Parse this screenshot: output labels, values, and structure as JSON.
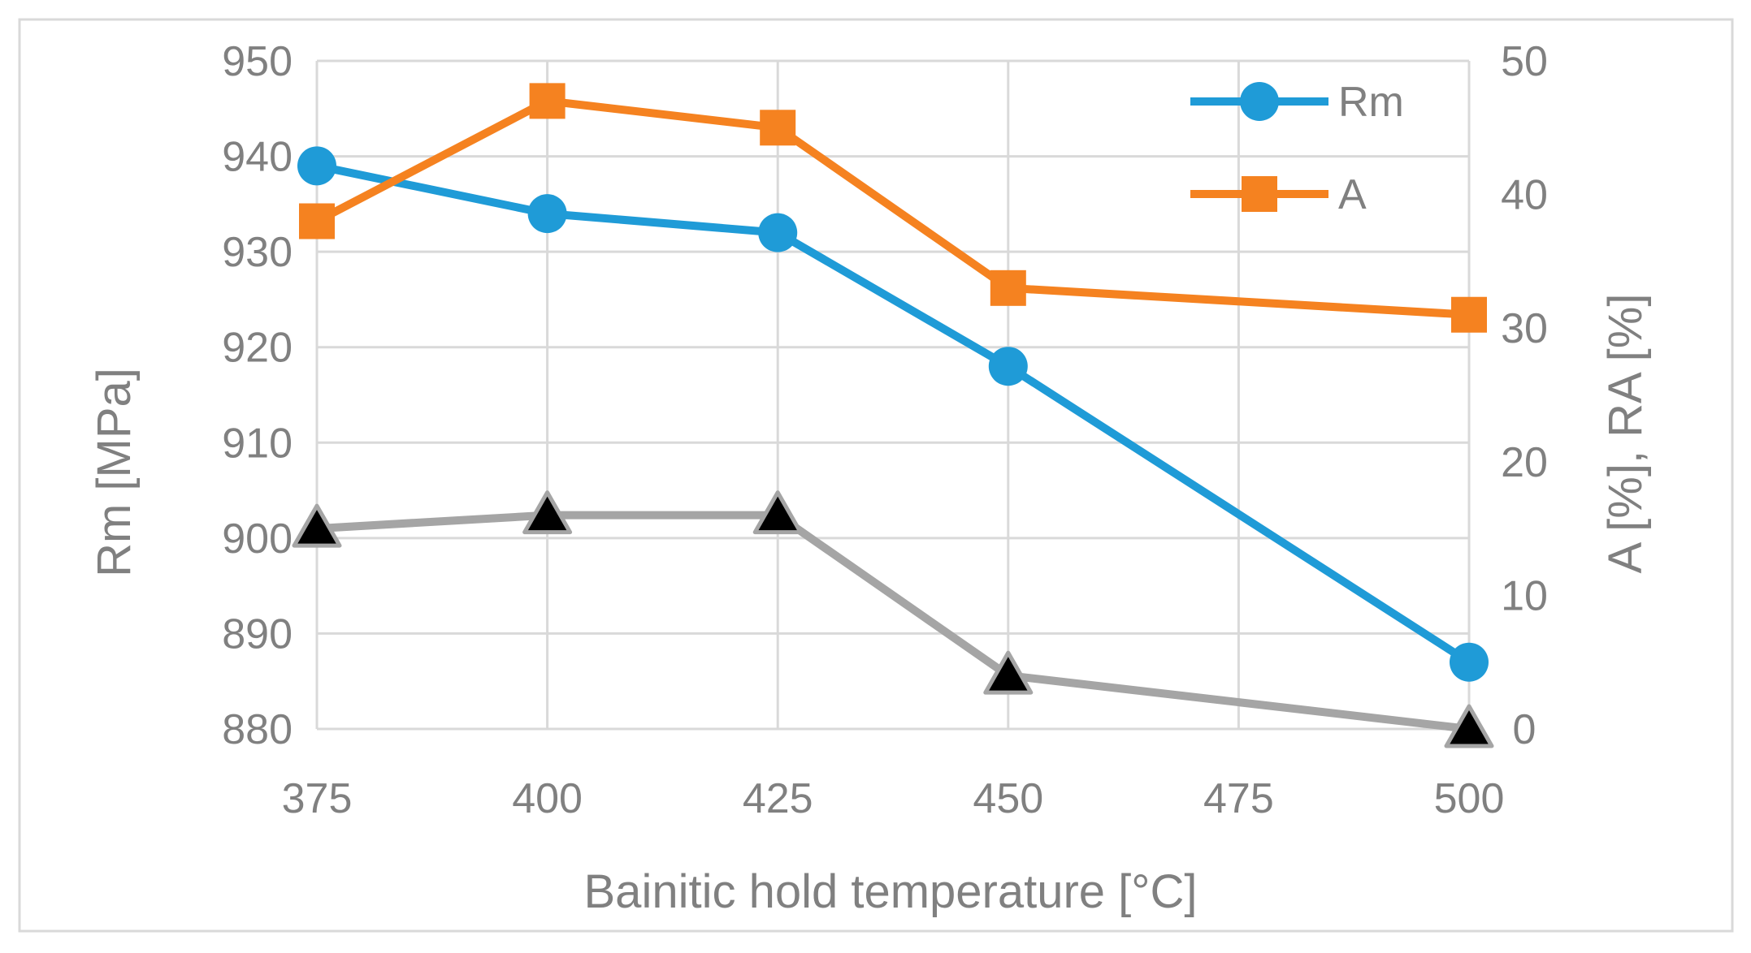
{
  "chart_data": {
    "type": "line",
    "title": "",
    "xlabel": "Bainitic hold temperature [°C]",
    "ylabel_left": "Rm [MPa]",
    "ylabel_right": "A [%], RA [%]",
    "x": [
      375,
      400,
      425,
      450,
      500
    ],
    "x_ticks": [
      "375",
      "400",
      "425",
      "450",
      "475",
      "500"
    ],
    "xlim": [
      375,
      500
    ],
    "ylim_left": [
      880,
      950
    ],
    "ylim_right": [
      0,
      50
    ],
    "y_left_ticks": [
      "880",
      "890",
      "900",
      "910",
      "920",
      "930",
      "940",
      "950"
    ],
    "y_right_ticks": [
      "0",
      "10",
      "20",
      "30",
      "40",
      "50"
    ],
    "grid": true,
    "legend_position": "top-right",
    "series": [
      {
        "name": "Rm",
        "axis": "left",
        "marker": "circle",
        "color": "#1f9bd7",
        "values": [
          939,
          934,
          932,
          918,
          887
        ],
        "in_legend": true
      },
      {
        "name": "A",
        "axis": "right",
        "marker": "square",
        "color": "#f58220",
        "values": [
          38,
          47,
          45,
          33,
          31
        ],
        "in_legend": true
      },
      {
        "name": "",
        "axis": "right",
        "marker": "triangle",
        "color": "#a5a5a5",
        "marker_fill": "#000000",
        "values": [
          15,
          16,
          16,
          4,
          0
        ],
        "in_legend": false
      }
    ]
  }
}
